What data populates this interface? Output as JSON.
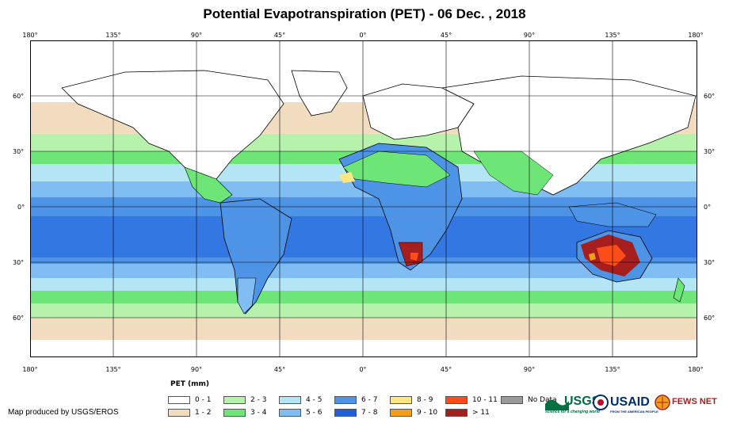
{
  "title": "Potential Evapotranspiration (PET) - 06 Dec. , 2018",
  "lon_labels": [
    "180°",
    "135°",
    "90°",
    "45°",
    "0°",
    "45°",
    "90°",
    "135°",
    "180°"
  ],
  "lat_labels": [
    "60°",
    "30°",
    "0°",
    "30°",
    "60°"
  ],
  "legend": {
    "title": "PET (mm)",
    "items": [
      {
        "label": "0 - 1",
        "color": "#ffffff"
      },
      {
        "label": "1 - 2",
        "color": "#f2dcbf"
      },
      {
        "label": "2 - 3",
        "color": "#b7f2ad"
      },
      {
        "label": "3 - 4",
        "color": "#6ee577"
      },
      {
        "label": "4 - 5",
        "color": "#b3e5f5"
      },
      {
        "label": "5 - 6",
        "color": "#80bdf2"
      },
      {
        "label": "6 - 7",
        "color": "#4d94e6"
      },
      {
        "label": "7 - 8",
        "color": "#1f5ee0"
      },
      {
        "label": "8 - 9",
        "color": "#ffe680"
      },
      {
        "label": "9 - 10",
        "color": "#f29e19"
      },
      {
        "label": "10 - 11",
        "color": "#ff4d19"
      },
      {
        "label": "> 11",
        "color": "#a61e1e"
      },
      {
        "label": "No Data",
        "color": "#9a9a9a"
      }
    ]
  },
  "credit": "Map produced by USGS/EROS",
  "logos": {
    "usgs": "USGS",
    "usgs_tagline": "science for a changing world",
    "usaid": "USAID",
    "usaid_tagline": "FROM THE AMERICAN PEOPLE",
    "fewsnet": "FEWS NET"
  }
}
